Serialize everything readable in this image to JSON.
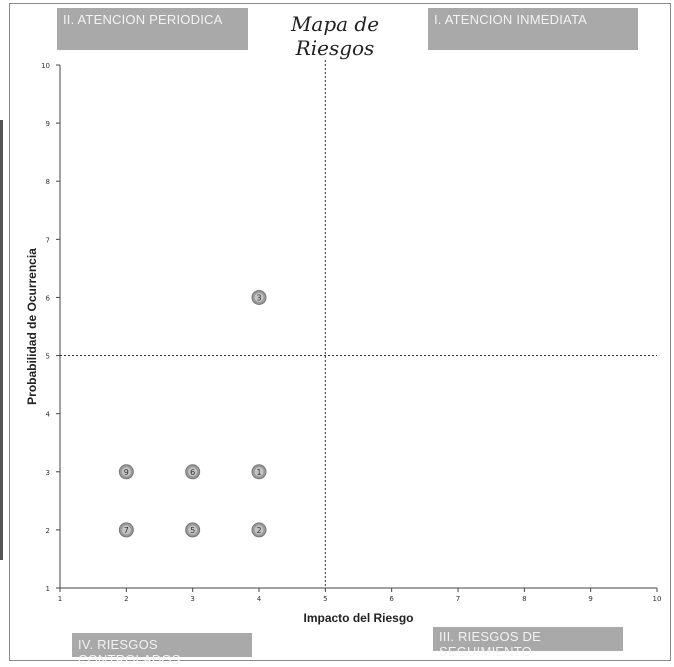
{
  "title": "Mapa de Riesgos",
  "quadrants": {
    "q1": "I. ATENCION INMEDIATA",
    "q2": "II. ATENCION PERIODICA",
    "q3": "III. RIESGOS DE SEGUIMIENTO",
    "q4": "IV. RIESGOS CONTROLADOS"
  },
  "chart_data": {
    "type": "scatter",
    "title": "Mapa de Riesgos",
    "xlabel": "Impacto del Riesgo",
    "ylabel": "Probabilidad de Ocurrencia",
    "xlim": [
      1,
      10
    ],
    "ylim": [
      1,
      10
    ],
    "xticks": [
      1,
      2,
      3,
      4,
      5,
      6,
      7,
      8,
      9,
      10
    ],
    "yticks": [
      1,
      2,
      3,
      4,
      5,
      6,
      7,
      8,
      9,
      10
    ],
    "threshold_x": 5,
    "threshold_y": 5,
    "grid": false,
    "points": [
      {
        "label": "1",
        "x": 4,
        "y": 3
      },
      {
        "label": "2",
        "x": 4,
        "y": 2
      },
      {
        "label": "3",
        "x": 4,
        "y": 6
      },
      {
        "label": "5",
        "x": 3,
        "y": 2
      },
      {
        "label": "6",
        "x": 3,
        "y": 3
      },
      {
        "label": "7",
        "x": 2,
        "y": 2
      },
      {
        "label": "9",
        "x": 2,
        "y": 3
      }
    ],
    "marker_color": "#9a9a9a"
  }
}
